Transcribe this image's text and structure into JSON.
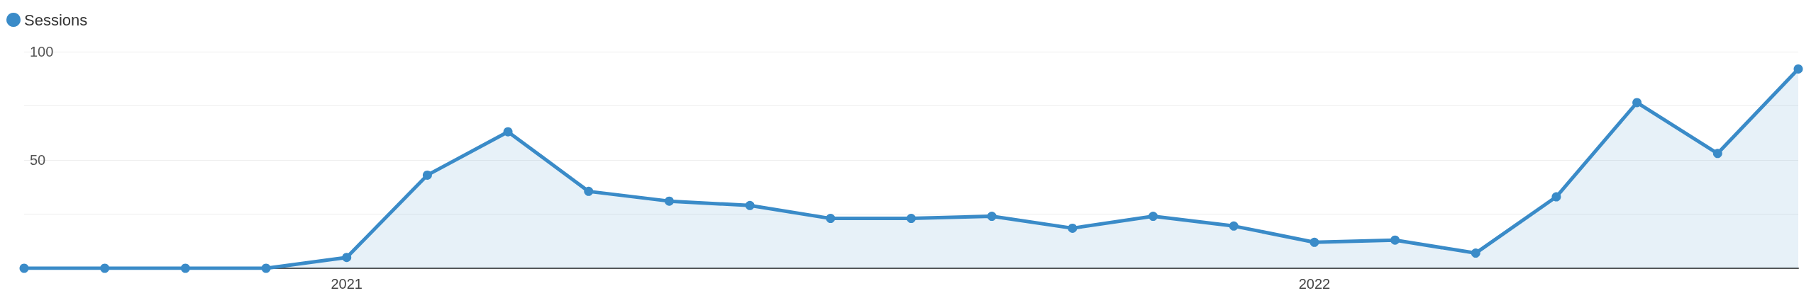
{
  "chart_data": {
    "type": "area",
    "categories": [
      null,
      null,
      null,
      null,
      "2021",
      null,
      null,
      null,
      null,
      null,
      null,
      null,
      null,
      null,
      null,
      null,
      "2022",
      null,
      null,
      null,
      null,
      null,
      null
    ],
    "series": [
      {
        "name": "Sessions",
        "color": "#3a8bc8",
        "values": [
          0,
          0,
          0,
          0,
          5,
          43,
          63,
          35.5,
          31,
          29,
          23,
          23,
          24,
          18.5,
          24,
          19.5,
          12,
          13,
          7,
          33,
          76.5,
          53,
          92
        ]
      }
    ],
    "ylim": [
      0,
      100
    ],
    "yticks": [
      {
        "value": 0,
        "label": null
      },
      {
        "value": 25,
        "label": null
      },
      50,
      {
        "value": 75,
        "label": null
      },
      100
    ],
    "grid": "y",
    "legend": "top left",
    "marker": "circle",
    "line_style": "solid"
  }
}
